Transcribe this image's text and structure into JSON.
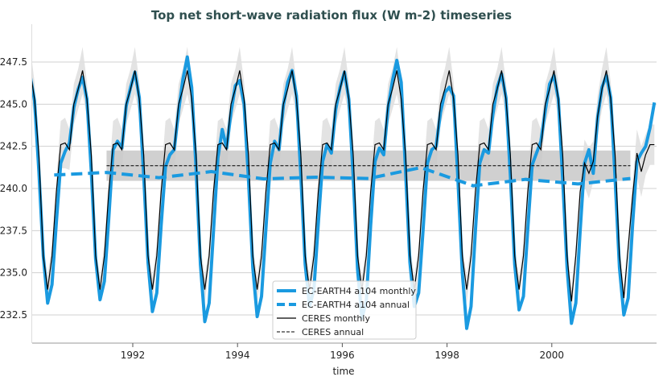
{
  "chart_data": {
    "type": "line",
    "title": "Top net short-wave radiation flux (W m-2) timeseries",
    "xlabel": "time",
    "ylabel": "",
    "xlim": [
      "1990-01",
      "2001-12"
    ],
    "ylim": [
      231.0,
      249.2
    ],
    "x_ticks": [
      "1992",
      "1994",
      "1996",
      "1998",
      "2000"
    ],
    "y_ticks": [
      "232.5",
      "235.0",
      "237.5",
      "240.0",
      "242.5",
      "245.0",
      "247.5"
    ],
    "grid": "horizontal",
    "legend_position": "bottom-center",
    "colors": {
      "model": "#1a9ae0",
      "ceres": "#000000",
      "band": "#c8c8c8",
      "band_light": "#e0e0e0"
    },
    "monthly_start": "1990-01",
    "series": [
      {
        "name": "EC-EARTH4 a104 monthly",
        "style": "solid-thick",
        "values_by_year": {
          "1990": [
            246.7,
            245.2,
            241.0,
            236.0,
            233.2,
            234.3,
            238.0,
            241.5,
            242.2,
            242.7,
            244.8,
            245.9
          ],
          "1991": [
            246.6,
            245.3,
            241.0,
            235.8,
            233.4,
            234.5,
            238.2,
            242.3,
            242.8,
            242.4,
            244.9,
            246.0
          ],
          "1992": [
            246.9,
            245.4,
            240.8,
            235.6,
            232.7,
            233.8,
            237.8,
            241.3,
            242.0,
            242.3,
            244.6,
            246.5
          ],
          "1993": [
            247.8,
            246.0,
            241.2,
            235.5,
            232.1,
            233.2,
            237.5,
            241.8,
            243.5,
            242.4,
            244.5,
            246.1
          ],
          "1994": [
            246.4,
            245.0,
            240.6,
            235.3,
            232.4,
            233.6,
            237.6,
            241.5,
            242.8,
            242.3,
            244.9,
            246.3
          ],
          "1995": [
            247.0,
            245.5,
            240.8,
            235.5,
            233.0,
            234.0,
            237.9,
            241.6,
            242.6,
            242.1,
            244.7,
            246.0
          ],
          "1996": [
            246.9,
            245.3,
            240.7,
            235.2,
            232.3,
            233.3,
            237.8,
            241.6,
            242.4,
            242.0,
            244.8,
            246.4
          ],
          "1997": [
            247.6,
            246.3,
            241.0,
            235.6,
            233.0,
            233.8,
            237.5,
            241.5,
            242.3,
            242.5,
            244.5,
            245.7
          ],
          "1998": [
            246.0,
            245.5,
            240.5,
            235.0,
            231.7,
            233.0,
            237.5,
            241.5,
            242.3,
            242.1,
            244.4,
            246.0
          ],
          "1999": [
            246.8,
            245.4,
            240.8,
            235.5,
            232.8,
            233.6,
            237.6,
            241.4,
            242.1,
            242.8,
            244.6,
            246.2
          ],
          "2000": [
            246.7,
            245.3,
            240.5,
            235.3,
            232.0,
            233.2,
            237.5,
            241.5,
            242.3,
            240.9,
            244.2,
            246.0
          ],
          "2001": [
            246.7,
            245.4,
            240.6,
            235.3,
            232.5,
            233.5,
            237.8,
            241.6,
            242.1,
            242.5,
            243.6,
            245.1
          ]
        }
      },
      {
        "name": "EC-EARTH4 a104 annual",
        "style": "dashed-thick",
        "years": [
          "1990",
          "1991",
          "1992",
          "1993",
          "1994",
          "1995",
          "1996",
          "1997",
          "1998",
          "1999",
          "2000",
          "2001"
        ],
        "values": [
          240.8,
          240.95,
          240.64,
          241.0,
          240.57,
          240.67,
          240.59,
          241.24,
          240.16,
          240.54,
          240.27,
          240.59
        ]
      },
      {
        "name": "CERES monthly",
        "style": "solid-thin",
        "spread_by_month": [
          1.4,
          1.0,
          0.8,
          0.6,
          0.8,
          0.7,
          0.8,
          1.4,
          1.5,
          1.2,
          1.2,
          1.2
        ],
        "values_by_year": {
          "1990": [
            247.0,
            245.3,
            242.0,
            236.0,
            234.0,
            236.0,
            239.8,
            242.6,
            242.7,
            242.3,
            245.0,
            245.9
          ],
          "1991": [
            247.0,
            245.3,
            242.0,
            236.0,
            234.0,
            236.0,
            239.8,
            242.6,
            242.7,
            242.3,
            245.0,
            245.9
          ],
          "1992": [
            247.0,
            245.3,
            242.0,
            236.0,
            234.0,
            236.0,
            239.8,
            242.6,
            242.7,
            242.3,
            245.0,
            245.9
          ],
          "1993": [
            247.0,
            245.3,
            242.0,
            236.0,
            234.0,
            236.0,
            239.8,
            242.6,
            242.7,
            242.3,
            245.0,
            245.9
          ],
          "1994": [
            247.0,
            245.3,
            242.0,
            236.0,
            234.0,
            236.0,
            239.8,
            242.6,
            242.7,
            242.3,
            245.0,
            245.9
          ],
          "1995": [
            247.0,
            245.3,
            242.0,
            236.0,
            234.0,
            236.0,
            239.8,
            242.6,
            242.7,
            242.3,
            245.0,
            245.9
          ],
          "1996": [
            247.0,
            245.3,
            242.0,
            236.0,
            234.0,
            236.0,
            239.8,
            242.6,
            242.7,
            242.3,
            245.0,
            245.9
          ],
          "1997": [
            247.0,
            245.3,
            242.0,
            236.0,
            234.0,
            236.0,
            239.8,
            242.6,
            242.7,
            242.3,
            245.0,
            245.9
          ],
          "1998": [
            247.0,
            245.3,
            242.0,
            236.0,
            234.0,
            236.0,
            239.8,
            242.6,
            242.7,
            242.3,
            245.0,
            245.9
          ],
          "1999": [
            247.0,
            245.3,
            242.0,
            236.0,
            234.0,
            236.0,
            239.8,
            242.6,
            242.7,
            242.3,
            245.0,
            245.9
          ],
          "2000": [
            247.0,
            245.3,
            242.0,
            236.0,
            233.3,
            236.0,
            239.8,
            241.5,
            240.9,
            241.6,
            244.3,
            245.9
          ],
          "2001": [
            247.0,
            245.3,
            242.0,
            236.0,
            233.5,
            236.5,
            239.5,
            242.1,
            241.0,
            242.0,
            242.6,
            242.6
          ]
        }
      },
      {
        "name": "CERES annual",
        "style": "dashed-thin",
        "start": "1991.5",
        "end": "2001.5",
        "value": 241.35,
        "range": [
          240.45,
          242.25
        ]
      }
    ]
  }
}
